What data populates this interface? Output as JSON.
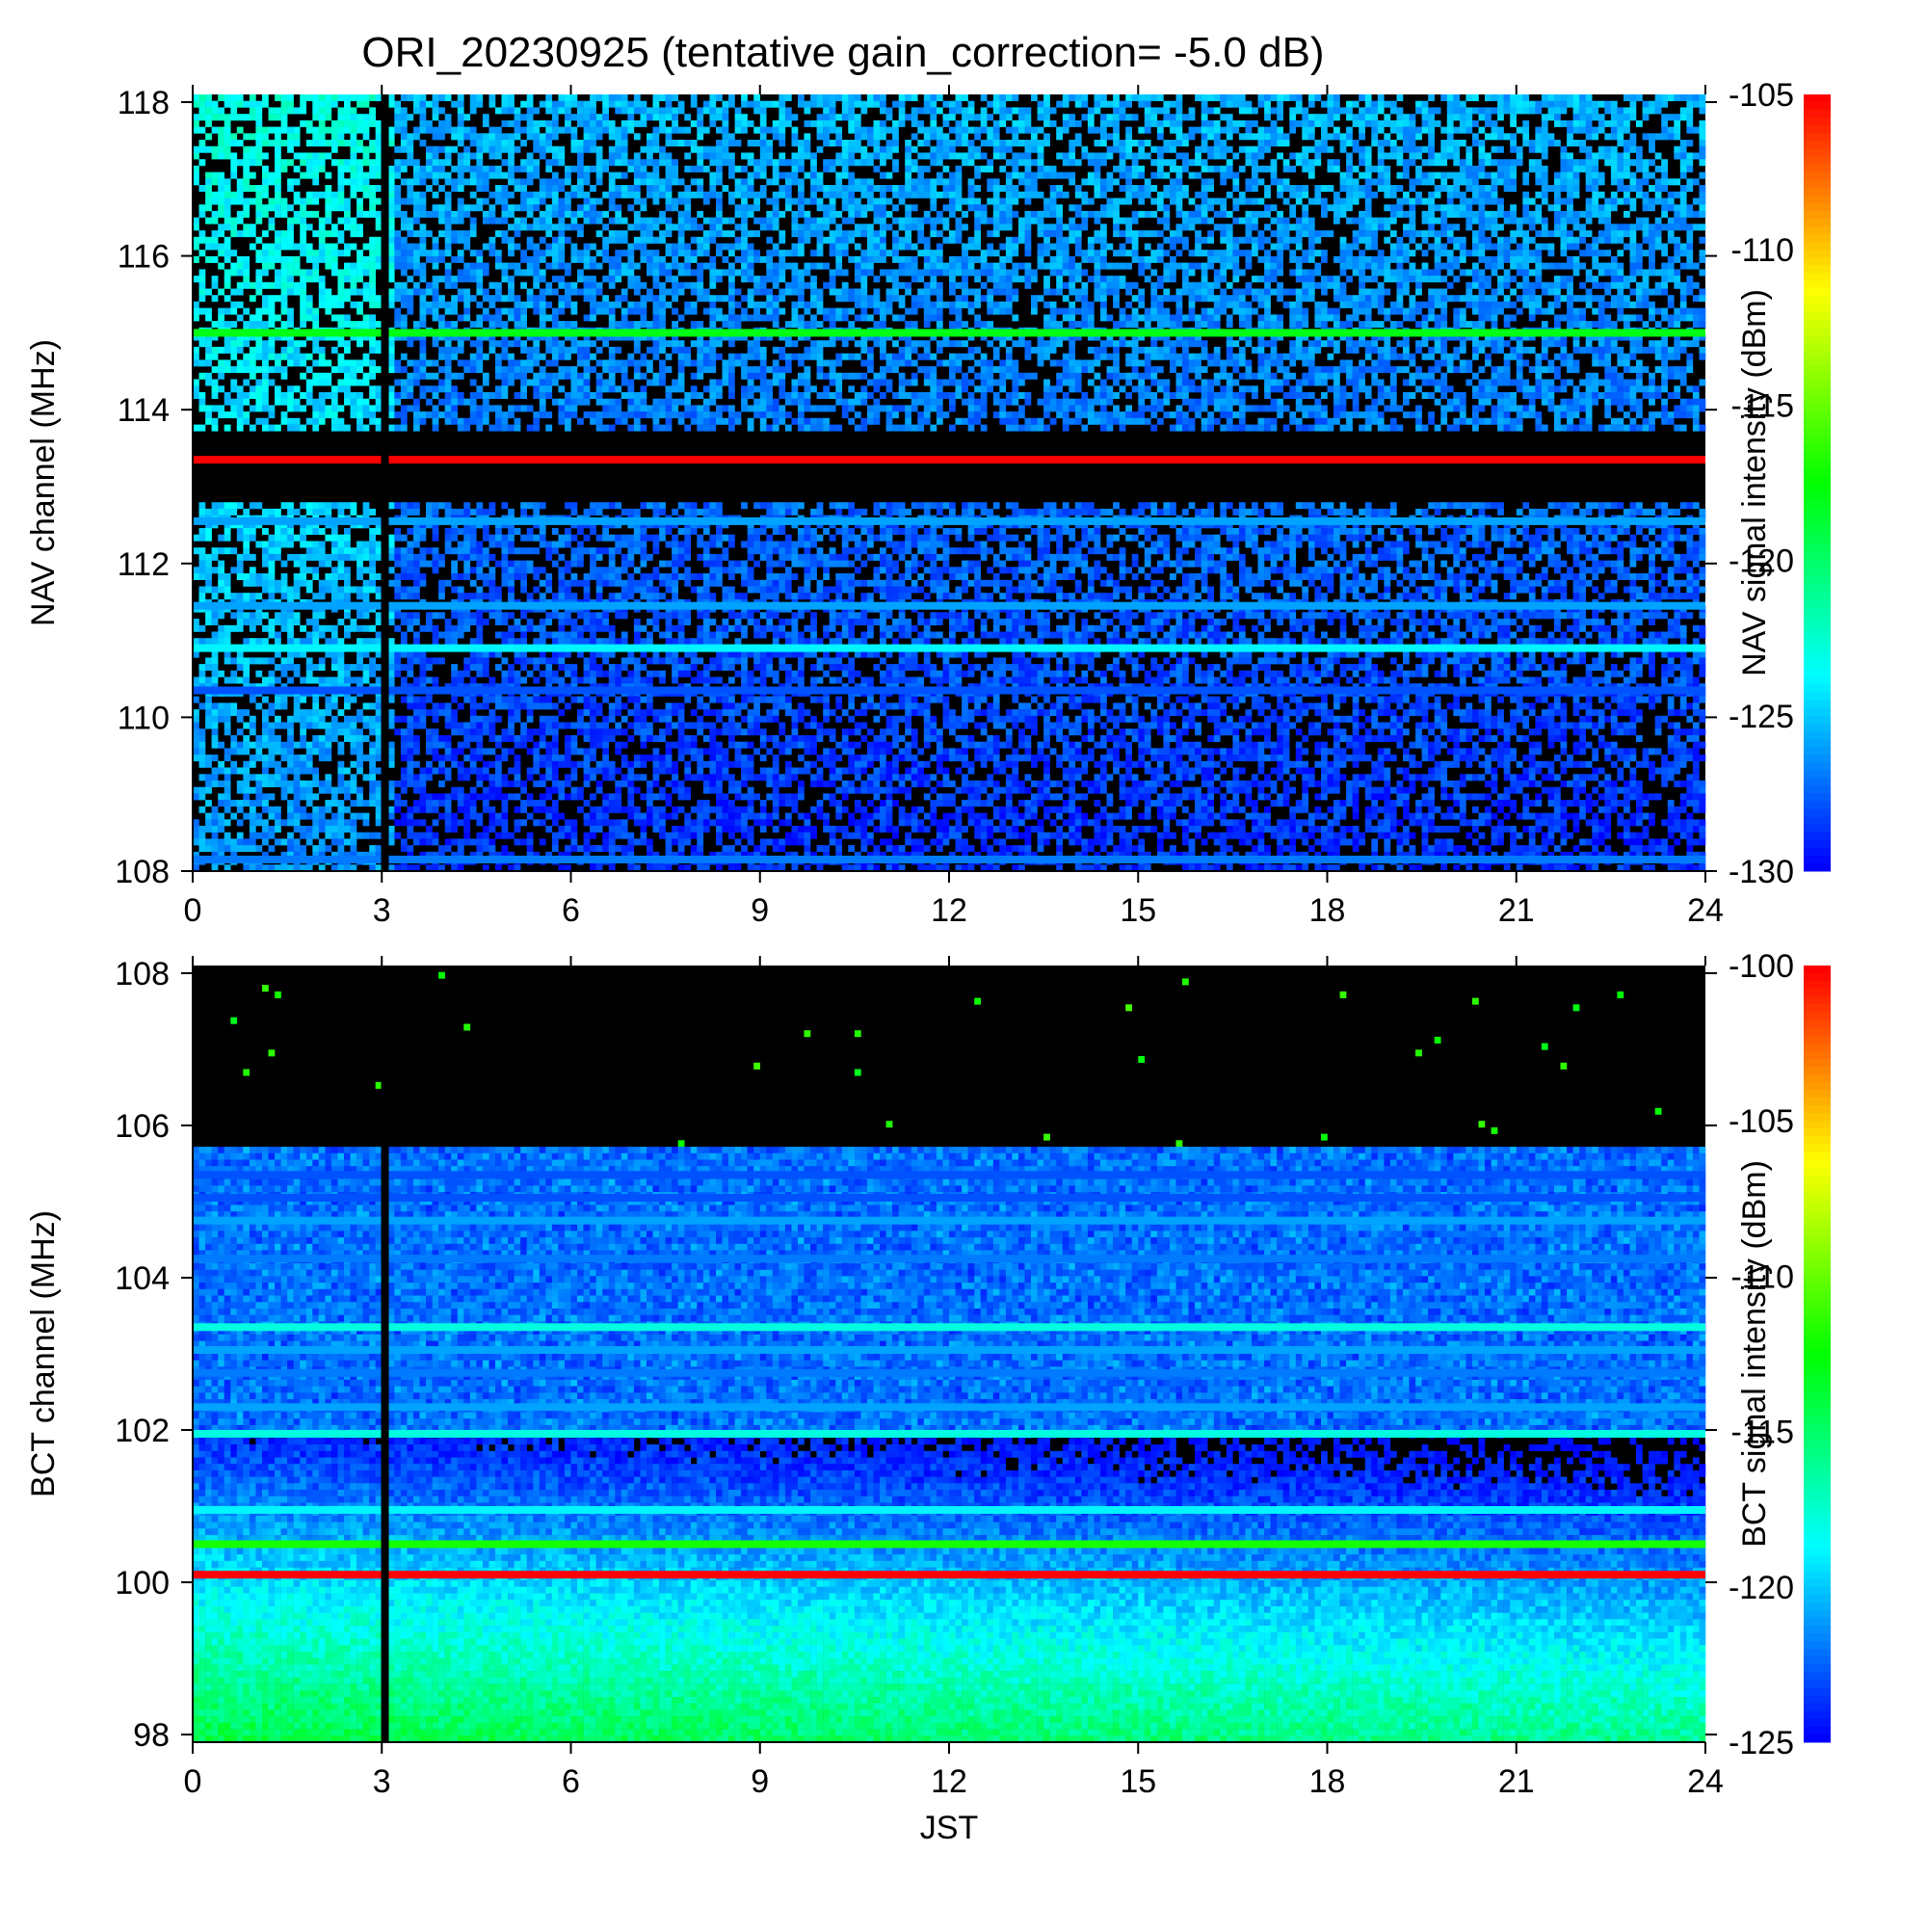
{
  "title": "ORI_20230925 (tentative gain_correction= -5.0 dB)",
  "chart_data": [
    {
      "type": "heatmap",
      "name": "NAV",
      "xlabel": "",
      "ylabel": "NAV channel (MHz)",
      "colorbar_label": "NAV signal intensity (dBm)",
      "xlim": [
        0,
        24
      ],
      "ylim": [
        108,
        118.1
      ],
      "clim": [
        -130,
        -105
      ],
      "xticks": [
        "0",
        "3",
        "6",
        "9",
        "12",
        "15",
        "18",
        "21",
        "24"
      ],
      "yticks": [
        "108",
        "110",
        "112",
        "114",
        "116",
        "118"
      ],
      "cticks": [
        "-130",
        "-125",
        "-120",
        "-115",
        "-110",
        "-105"
      ],
      "colormap": [
        "#0000ff",
        "#00ffff",
        "#00ff00",
        "#ffff00",
        "#ff0000"
      ],
      "data_gap_x": 3.05,
      "bands": [
        {
          "y": 115.0,
          "value": -118
        },
        {
          "y": 113.35,
          "value": -105
        },
        {
          "y": 112.55,
          "value": -126
        },
        {
          "y": 111.45,
          "value": -126
        },
        {
          "y": 110.9,
          "value": -124
        },
        {
          "y": 110.35,
          "value": -128
        },
        {
          "y": 108.15,
          "value": -127
        }
      ]
    },
    {
      "type": "heatmap",
      "name": "BCT",
      "xlabel": "JST",
      "ylabel": "BCT channel (MHz)",
      "colorbar_label": "BCT signal intensity (dBm)",
      "xlim": [
        0,
        24
      ],
      "ylim": [
        97.9,
        108.1
      ],
      "clim": [
        -125,
        -100
      ],
      "xticks": [
        "0",
        "3",
        "6",
        "9",
        "12",
        "15",
        "18",
        "21",
        "24"
      ],
      "yticks": [
        "98",
        "100",
        "102",
        "104",
        "106",
        "108"
      ],
      "cticks": [
        "-125",
        "-120",
        "-115",
        "-110",
        "-105",
        "-100"
      ],
      "colormap": [
        "#0000ff",
        "#00ffff",
        "#00ff00",
        "#ffff00",
        "#ff0000"
      ],
      "data_gap_x": 3.05,
      "bands": [
        {
          "y": 105.35,
          "value": -123
        },
        {
          "y": 105.05,
          "value": -123
        },
        {
          "y": 104.75,
          "value": -121
        },
        {
          "y": 104.25,
          "value": -122
        },
        {
          "y": 103.35,
          "value": -118
        },
        {
          "y": 103.05,
          "value": -121
        },
        {
          "y": 102.75,
          "value": -122
        },
        {
          "y": 102.3,
          "value": -121
        },
        {
          "y": 101.95,
          "value": -118
        },
        {
          "y": 100.95,
          "value": -119
        },
        {
          "y": 100.5,
          "value": -112
        },
        {
          "y": 100.1,
          "value": -100
        }
      ]
    }
  ]
}
